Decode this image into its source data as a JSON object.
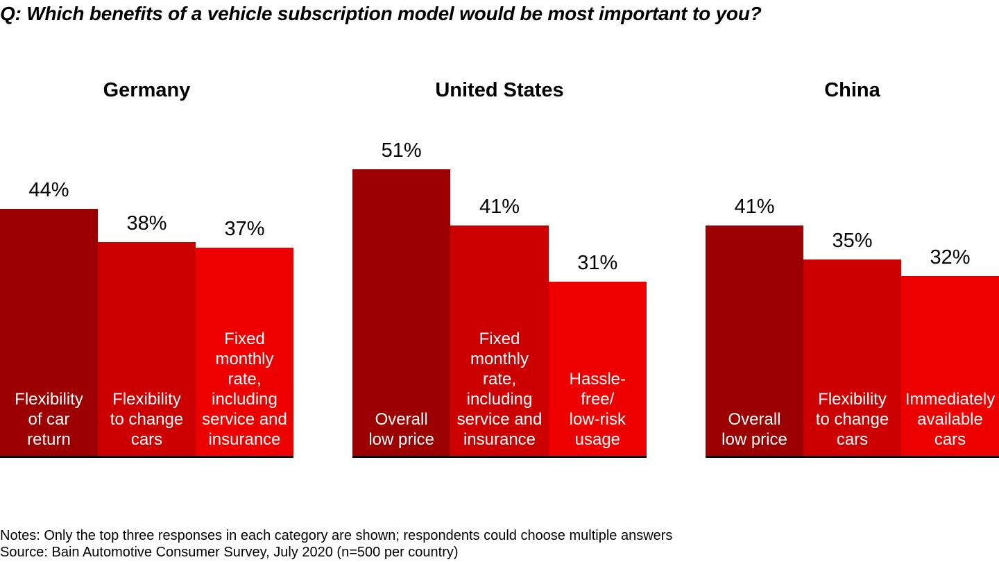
{
  "title": "Q: Which benefits of a vehicle subscription model would be most important to you?",
  "notes": "Notes: Only the top three responses in each category are shown; respondents could choose multiple answers",
  "source": "Source: Bain Automotive Consumer Survey, July 2020 (n=500 per country)",
  "chart_data": {
    "type": "bar",
    "unit": "%",
    "ylim": [
      0,
      55
    ],
    "grid": false,
    "legend": "none",
    "bar_colors": [
      "#9D0000",
      "#CC0000",
      "#EE0000"
    ],
    "label_text_color": "#ffffff",
    "value_text_color": "#000000",
    "groups": [
      {
        "title": "Germany",
        "bars": [
          {
            "label": "Flexibility of car return",
            "wrap": "Flexibility\nof car\nreturn",
            "value": 44,
            "value_label": "44%"
          },
          {
            "label": "Flexibility to change cars",
            "wrap": "Flexibility\nto change\ncars",
            "value": 38,
            "value_label": "38%"
          },
          {
            "label": "Fixed monthly rate, including service and insurance",
            "wrap": "Fixed\nmonthly\nrate,\nincluding\nservice and\ninsurance",
            "value": 37,
            "value_label": "37%"
          }
        ]
      },
      {
        "title": "United States",
        "bars": [
          {
            "label": "Overall low price",
            "wrap": "Overall\nlow price",
            "value": 51,
            "value_label": "51%"
          },
          {
            "label": "Fixed monthly rate, including service and insurance",
            "wrap": "Fixed\nmonthly\nrate,\nincluding\nservice and\ninsurance",
            "value": 41,
            "value_label": "41%"
          },
          {
            "label": "Hassle-free/ low-risk usage",
            "wrap": "Hassle-\nfree/\nlow-risk\nusage",
            "value": 31,
            "value_label": "31%"
          }
        ]
      },
      {
        "title": "China",
        "bars": [
          {
            "label": "Overall low price",
            "wrap": "Overall\nlow price",
            "value": 41,
            "value_label": "41%"
          },
          {
            "label": "Flexibility to change cars",
            "wrap": "Flexibility\nto change\ncars",
            "value": 35,
            "value_label": "35%"
          },
          {
            "label": "Immediately available cars",
            "wrap": "Immediately\navailable\ncars",
            "value": 32,
            "value_label": "32%"
          }
        ]
      }
    ]
  }
}
